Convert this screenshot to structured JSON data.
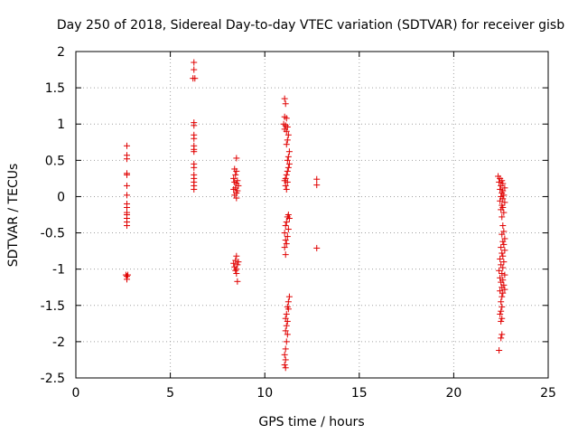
{
  "chart_data": {
    "type": "scatter",
    "title": "Day 250 of 2018, Sidereal Day-to-day VTEC variation (SDTVAR) for receiver gisb",
    "xlabel": "GPS time / hours",
    "ylabel": "SDTVAR / TECUs",
    "xlim": [
      0,
      25
    ],
    "ylim": [
      -2.5,
      2
    ],
    "xticks": [
      "0",
      "5",
      "10",
      "15",
      "20",
      "25"
    ],
    "yticks": [
      "2",
      "1.5",
      "1",
      "0.5",
      "0",
      "-0.5",
      "-1",
      "-1.5",
      "-2",
      "-2.5"
    ],
    "grid": true,
    "marker": "+",
    "color": "#e00000",
    "points": [
      [
        2.7,
        0.7
      ],
      [
        2.7,
        0.57
      ],
      [
        2.7,
        0.52
      ],
      [
        2.7,
        0.32
      ],
      [
        2.7,
        0.3
      ],
      [
        2.7,
        0.15
      ],
      [
        2.7,
        0.02
      ],
      [
        2.7,
        -0.1
      ],
      [
        2.7,
        -0.15
      ],
      [
        2.7,
        -0.22
      ],
      [
        2.7,
        -0.25
      ],
      [
        2.7,
        -0.3
      ],
      [
        2.7,
        -0.35
      ],
      [
        2.7,
        -0.4
      ],
      [
        2.65,
        -1.08
      ],
      [
        2.75,
        -1.08
      ],
      [
        2.7,
        -1.1
      ],
      [
        2.7,
        -1.14
      ],
      [
        6.25,
        1.85
      ],
      [
        6.25,
        1.75
      ],
      [
        6.2,
        1.63
      ],
      [
        6.3,
        1.63
      ],
      [
        6.25,
        1.02
      ],
      [
        6.25,
        0.98
      ],
      [
        6.25,
        0.85
      ],
      [
        6.25,
        0.8
      ],
      [
        6.25,
        0.7
      ],
      [
        6.25,
        0.65
      ],
      [
        6.25,
        0.62
      ],
      [
        6.25,
        0.45
      ],
      [
        6.25,
        0.4
      ],
      [
        6.25,
        0.3
      ],
      [
        6.25,
        0.25
      ],
      [
        6.25,
        0.2
      ],
      [
        6.25,
        0.15
      ],
      [
        6.25,
        0.1
      ],
      [
        8.5,
        0.53
      ],
      [
        8.4,
        0.38
      ],
      [
        8.5,
        0.35
      ],
      [
        8.45,
        0.3
      ],
      [
        8.35,
        0.25
      ],
      [
        8.55,
        0.22
      ],
      [
        8.4,
        0.2
      ],
      [
        8.5,
        0.18
      ],
      [
        8.6,
        0.15
      ],
      [
        8.45,
        0.12
      ],
      [
        8.35,
        0.1
      ],
      [
        8.55,
        0.08
      ],
      [
        8.5,
        0.05
      ],
      [
        8.4,
        0.02
      ],
      [
        8.5,
        -0.02
      ],
      [
        8.5,
        -0.82
      ],
      [
        8.45,
        -0.88
      ],
      [
        8.35,
        -0.92
      ],
      [
        8.55,
        -0.94
      ],
      [
        8.4,
        -0.97
      ],
      [
        8.5,
        -1.0
      ],
      [
        8.6,
        -0.9
      ],
      [
        8.45,
        -1.02
      ],
      [
        8.5,
        -1.06
      ],
      [
        8.55,
        -1.17
      ],
      [
        11.05,
        1.35
      ],
      [
        11.1,
        1.28
      ],
      [
        11.05,
        1.1
      ],
      [
        11.15,
        1.08
      ],
      [
        11.0,
        1.0
      ],
      [
        11.1,
        0.98
      ],
      [
        11.2,
        0.96
      ],
      [
        11.05,
        0.93
      ],
      [
        11.15,
        0.9
      ],
      [
        11.25,
        0.85
      ],
      [
        11.2,
        0.78
      ],
      [
        11.15,
        0.72
      ],
      [
        11.3,
        0.62
      ],
      [
        11.25,
        0.55
      ],
      [
        11.2,
        0.5
      ],
      [
        11.3,
        0.45
      ],
      [
        11.25,
        0.4
      ],
      [
        11.2,
        0.35
      ],
      [
        11.15,
        0.3
      ],
      [
        11.1,
        0.25
      ],
      [
        11.05,
        0.22
      ],
      [
        11.2,
        0.2
      ],
      [
        11.1,
        0.15
      ],
      [
        11.15,
        0.1
      ],
      [
        11.25,
        -0.25
      ],
      [
        11.2,
        -0.28
      ],
      [
        11.3,
        -0.3
      ],
      [
        11.15,
        -0.35
      ],
      [
        11.1,
        -0.4
      ],
      [
        11.25,
        -0.45
      ],
      [
        11.05,
        -0.5
      ],
      [
        11.2,
        -0.55
      ],
      [
        11.1,
        -0.6
      ],
      [
        11.15,
        -0.65
      ],
      [
        11.05,
        -0.7
      ],
      [
        11.1,
        -0.8
      ],
      [
        11.3,
        -1.38
      ],
      [
        11.25,
        -1.45
      ],
      [
        11.2,
        -1.52
      ],
      [
        11.25,
        -1.55
      ],
      [
        11.15,
        -1.62
      ],
      [
        11.1,
        -1.68
      ],
      [
        11.2,
        -1.72
      ],
      [
        11.15,
        -1.78
      ],
      [
        11.1,
        -1.85
      ],
      [
        11.2,
        -1.9
      ],
      [
        11.15,
        -2.0
      ],
      [
        11.1,
        -2.1
      ],
      [
        11.05,
        -2.18
      ],
      [
        11.1,
        -2.25
      ],
      [
        11.05,
        -2.32
      ],
      [
        11.1,
        -2.36
      ],
      [
        12.75,
        0.24
      ],
      [
        12.75,
        0.16
      ],
      [
        12.75,
        -0.71
      ],
      [
        22.35,
        0.28
      ],
      [
        22.45,
        0.25
      ],
      [
        22.55,
        0.22
      ],
      [
        22.4,
        0.2
      ],
      [
        22.6,
        0.18
      ],
      [
        22.5,
        0.15
      ],
      [
        22.7,
        0.12
      ],
      [
        22.45,
        0.1
      ],
      [
        22.6,
        0.08
      ],
      [
        22.55,
        0.05
      ],
      [
        22.65,
        0.02
      ],
      [
        22.5,
        0.0
      ],
      [
        22.6,
        -0.03
      ],
      [
        22.45,
        -0.06
      ],
      [
        22.7,
        -0.08
      ],
      [
        22.55,
        -0.12
      ],
      [
        22.6,
        -0.15
      ],
      [
        22.5,
        -0.18
      ],
      [
        22.65,
        -0.22
      ],
      [
        22.55,
        -0.28
      ],
      [
        22.6,
        -0.4
      ],
      [
        22.65,
        -0.48
      ],
      [
        22.55,
        -0.52
      ],
      [
        22.7,
        -0.58
      ],
      [
        22.6,
        -0.62
      ],
      [
        22.65,
        -0.66
      ],
      [
        22.5,
        -0.7
      ],
      [
        22.7,
        -0.74
      ],
      [
        22.55,
        -0.78
      ],
      [
        22.6,
        -0.82
      ],
      [
        22.45,
        -0.86
      ],
      [
        22.65,
        -0.9
      ],
      [
        22.5,
        -0.94
      ],
      [
        22.6,
        -0.98
      ],
      [
        22.4,
        -1.02
      ],
      [
        22.55,
        -1.06
      ],
      [
        22.7,
        -1.08
      ],
      [
        22.45,
        -1.12
      ],
      [
        22.6,
        -1.15
      ],
      [
        22.5,
        -1.18
      ],
      [
        22.65,
        -1.22
      ],
      [
        22.55,
        -1.25
      ],
      [
        22.7,
        -1.28
      ],
      [
        22.45,
        -1.3
      ],
      [
        22.6,
        -1.33
      ],
      [
        22.55,
        -1.38
      ],
      [
        22.5,
        -1.45
      ],
      [
        22.55,
        -1.52
      ],
      [
        22.5,
        -1.58
      ],
      [
        22.45,
        -1.62
      ],
      [
        22.55,
        -1.68
      ],
      [
        22.5,
        -1.72
      ],
      [
        22.55,
        -1.9
      ],
      [
        22.5,
        -1.95
      ],
      [
        22.4,
        -2.12
      ]
    ]
  }
}
